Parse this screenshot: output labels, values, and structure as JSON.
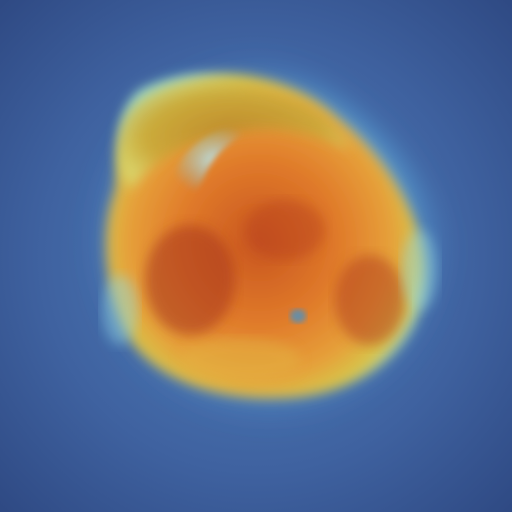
{
  "image": {
    "subject": "micrograph-cell",
    "colors": {
      "background": "#3d5a8a",
      "background_center": "#4a74ad",
      "halo": "#7fd3f0",
      "rim_yellow": "#d6c64a",
      "body_orange": "#e07a2a",
      "body_red": "#b8401f",
      "highlight_cyan": "#8fd6e6"
    }
  }
}
